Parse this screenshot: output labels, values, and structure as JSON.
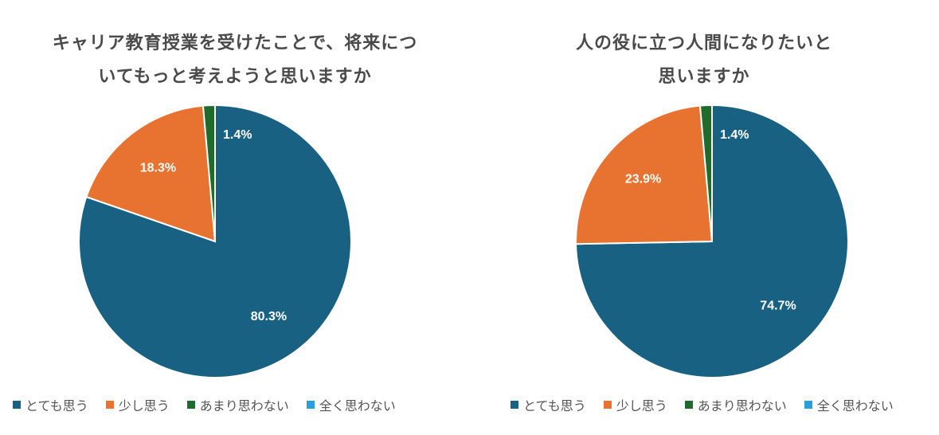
{
  "chart_data": [
    {
      "type": "pie",
      "title_lines": [
        "キャリア教育授業を受けたことで、将来につ",
        "いてもっと考えようと思いますか"
      ],
      "labels": [
        "とても思う",
        "少し思う",
        "あまり思わない",
        "全く思わない"
      ],
      "values": [
        80.3,
        18.3,
        1.4,
        0.0
      ],
      "value_labels": [
        "80.3%",
        "18.3%",
        "1.4%",
        ""
      ],
      "colors": [
        "#196182",
        "#e87331",
        "#1f6b2e",
        "#26a1dc"
      ],
      "legend_position": "bottom"
    },
    {
      "type": "pie",
      "title_lines": [
        "人の役に立つ人間になりたいと",
        "思いますか"
      ],
      "labels": [
        "とても思う",
        "少し思う",
        "あまり思わない",
        "全く思わない"
      ],
      "values": [
        74.7,
        23.9,
        1.4,
        0.0
      ],
      "value_labels": [
        "74.7%",
        "23.9%",
        "1.4%",
        ""
      ],
      "colors": [
        "#196182",
        "#e87331",
        "#1f6b2e",
        "#26a1dc"
      ],
      "legend_position": "bottom"
    }
  ]
}
